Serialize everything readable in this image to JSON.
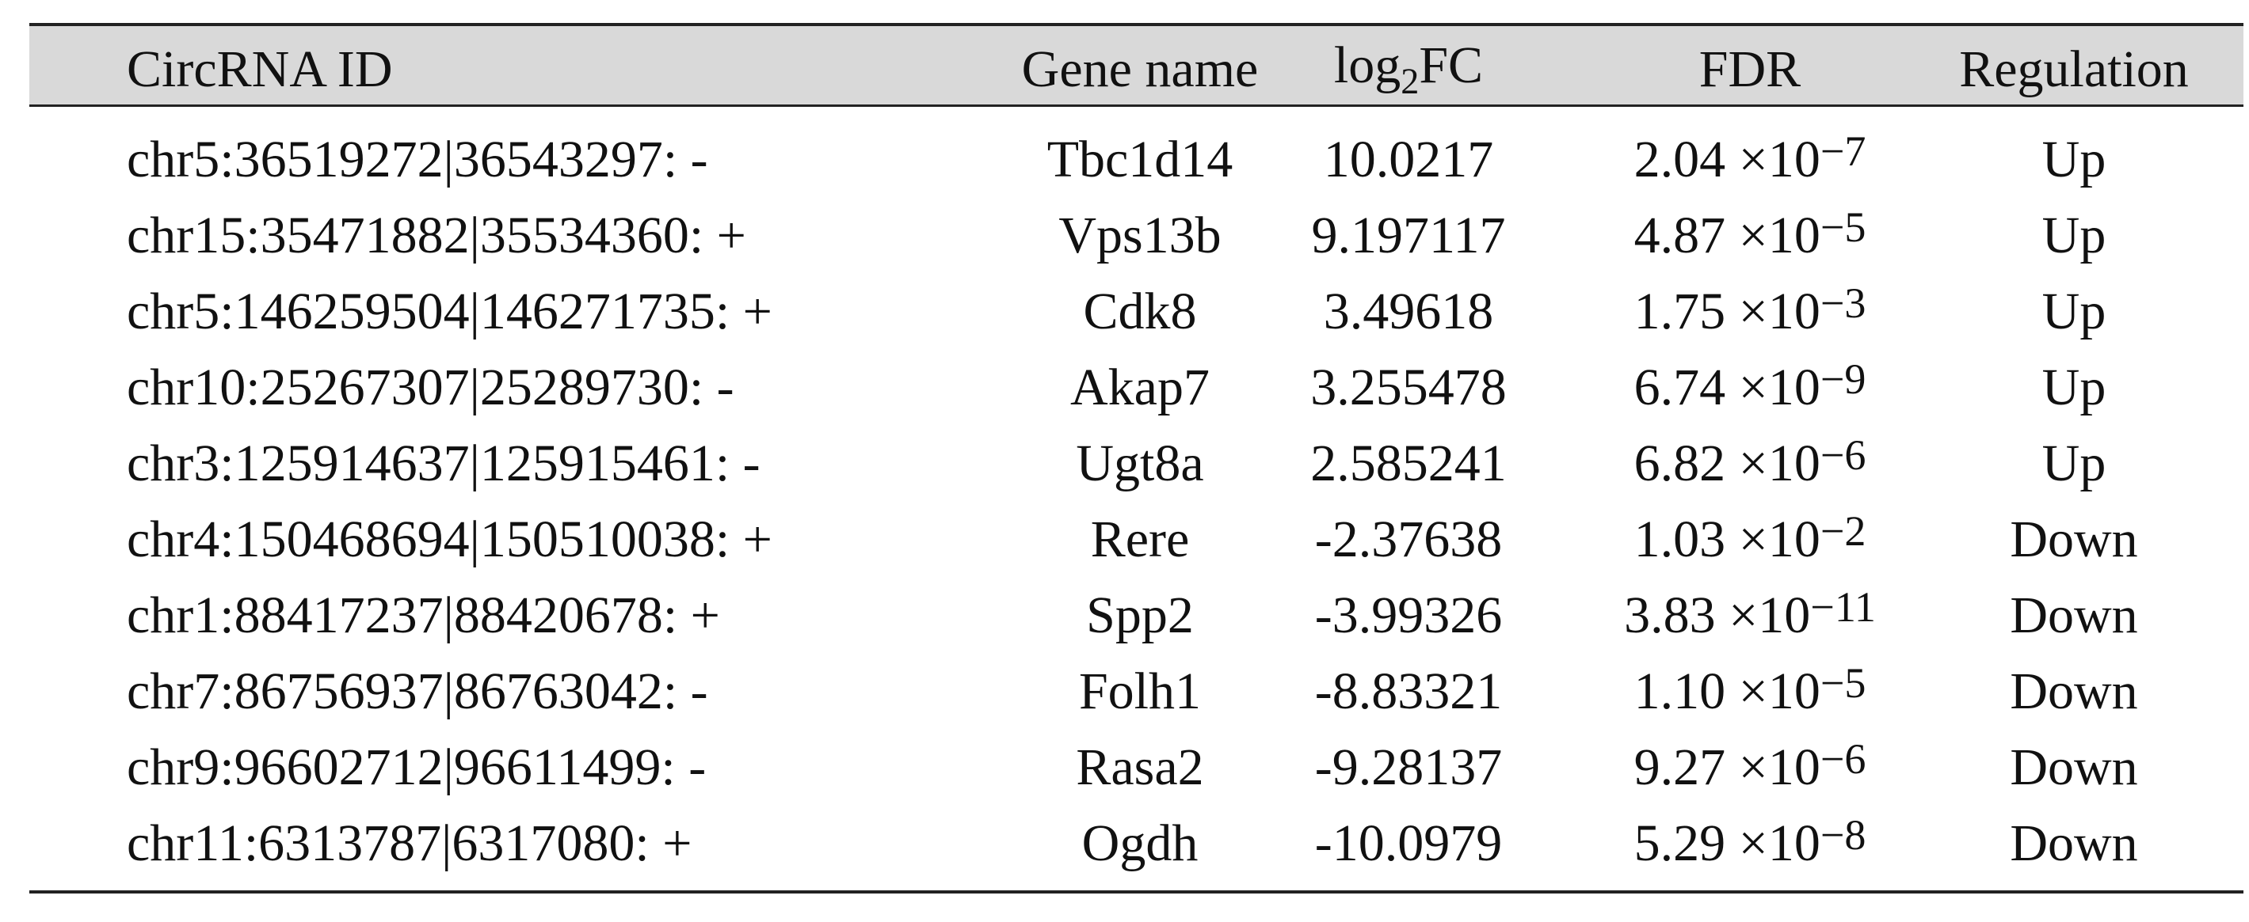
{
  "table": {
    "header": [
      "CircRNA ID",
      "Gene name",
      {
        "base": "log",
        "sub": "2",
        "rest": "FC"
      },
      "FDR",
      "Regulation"
    ],
    "rows": [
      [
        "chr5:36519272|36543297: -",
        "Tbc1d14",
        "10.0217",
        {
          "mantissa": "2.04 ×10",
          "exponent": "−7"
        },
        "Up"
      ],
      [
        "chr15:35471882|35534360: +",
        "Vps13b",
        "9.197117",
        {
          "mantissa": "4.87 ×10",
          "exponent": "−5"
        },
        "Up"
      ],
      [
        "chr5:146259504|146271735: +",
        "Cdk8",
        "3.49618",
        {
          "mantissa": "1.75 ×10",
          "exponent": "−3"
        },
        "Up"
      ],
      [
        "chr10:25267307|25289730: -",
        "Akap7",
        "3.255478",
        {
          "mantissa": "6.74 ×10",
          "exponent": "−9"
        },
        "Up"
      ],
      [
        "chr3:125914637|125915461: -",
        "Ugt8a",
        "2.585241",
        {
          "mantissa": "6.82 ×10",
          "exponent": "−6"
        },
        "Up"
      ],
      [
        "chr4:150468694|150510038: +",
        "Rere",
        "-2.37638",
        {
          "mantissa": "1.03 ×10",
          "exponent": "−2"
        },
        "Down"
      ],
      [
        "chr1:88417237|88420678: +",
        "Spp2",
        "-3.99326",
        {
          "mantissa": "3.83 ×10",
          "exponent": "−11"
        },
        "Down"
      ],
      [
        "chr7:86756937|86763042: -",
        "Folh1",
        "-8.83321",
        {
          "mantissa": "1.10 ×10",
          "exponent": "−5"
        },
        "Down"
      ],
      [
        "chr9:96602712|96611499: -",
        "Rasa2",
        "-9.28137",
        {
          "mantissa": "9.27 ×10",
          "exponent": "−6"
        },
        "Down"
      ],
      [
        "chr11:6313787|6317080: +",
        "Ogdh",
        "-10.0979",
        {
          "mantissa": "5.29 ×10",
          "exponent": "−8"
        },
        "Down"
      ]
    ]
  }
}
